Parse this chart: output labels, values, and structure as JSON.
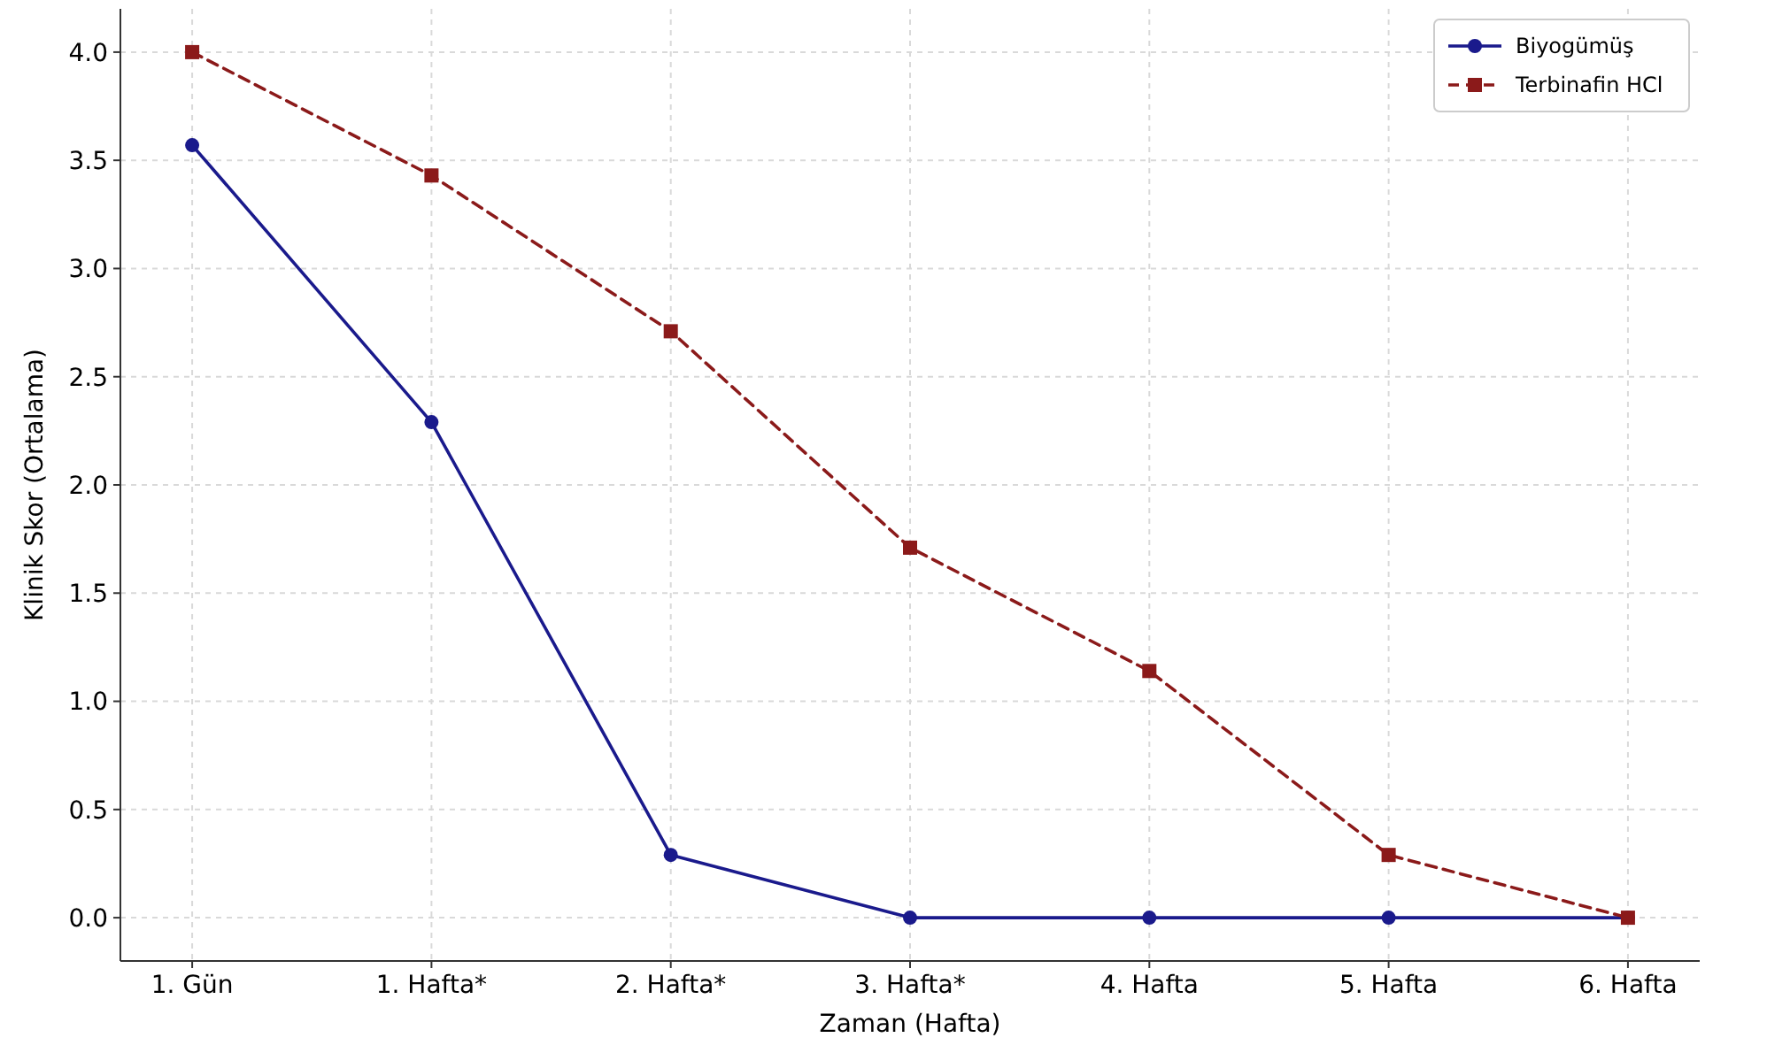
{
  "chart_data": {
    "type": "line",
    "xlabel": "Zaman (Hafta)",
    "ylabel": "Klinik Skor (Ortalama)",
    "categories": [
      "1. Gün",
      "1. Hafta*",
      "2. Hafta*",
      "3. Hafta*",
      "4. Hafta",
      "5. Hafta",
      "6. Hafta"
    ],
    "series": [
      {
        "name": "Biyogümüş",
        "color": "#1a1a8c",
        "marker": "circle",
        "line_style": "solid",
        "values": [
          3.57,
          2.29,
          0.29,
          0,
          0,
          0,
          0
        ]
      },
      {
        "name": "Terbinafin HCl",
        "color": "#8b1a1a",
        "marker": "square",
        "line_style": "dashed",
        "values": [
          4.0,
          3.43,
          2.71,
          1.71,
          1.14,
          0.29,
          0
        ]
      }
    ],
    "ylim": [
      -0.2,
      4.2
    ],
    "yticks": [
      {
        "value": 0,
        "label": "0.0"
      },
      {
        "value": 0.5,
        "label": "0.5"
      },
      {
        "value": 1,
        "label": "1.0"
      },
      {
        "value": 1.5,
        "label": "1.5"
      },
      {
        "value": 2,
        "label": "2.0"
      },
      {
        "value": 2.5,
        "label": "2.5"
      },
      {
        "value": 3,
        "label": "3.0"
      },
      {
        "value": 3.5,
        "label": "3.5"
      },
      {
        "value": 4,
        "label": "4.0"
      }
    ],
    "grid": true,
    "legend": "top right"
  }
}
